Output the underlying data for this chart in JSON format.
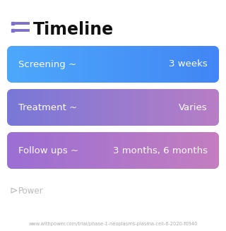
{
  "title": "Timeline",
  "title_icon_color": "#7c6fcd",
  "title_fontsize": 17,
  "title_fontweight": "bold",
  "title_color": "#111111",
  "background_color": "#ffffff",
  "rows": [
    {
      "label": "Screening ~",
      "value": "3 weeks",
      "color_left": "#4da8fb",
      "color_right": "#4286f5"
    },
    {
      "label": "Treatment ~",
      "value": "Varies",
      "color_left": "#7878d8",
      "color_right": "#b87ec5"
    },
    {
      "label": "Follow ups ~",
      "value": "3 months, 6 months",
      "color_left": "#9b6fd4",
      "color_right": "#c47ec0"
    }
  ],
  "row_text_color": "#ffffff",
  "row_label_fontsize": 9.5,
  "row_value_fontsize": 9.5,
  "footer_text": "www.withpower.com/trial/phase-1-neoplasms-plasma-cell-6-2020-f0940",
  "footer_fontsize": 4.8,
  "power_text": "Power",
  "power_fontsize": 8.5,
  "power_color": "#bbbbbb"
}
